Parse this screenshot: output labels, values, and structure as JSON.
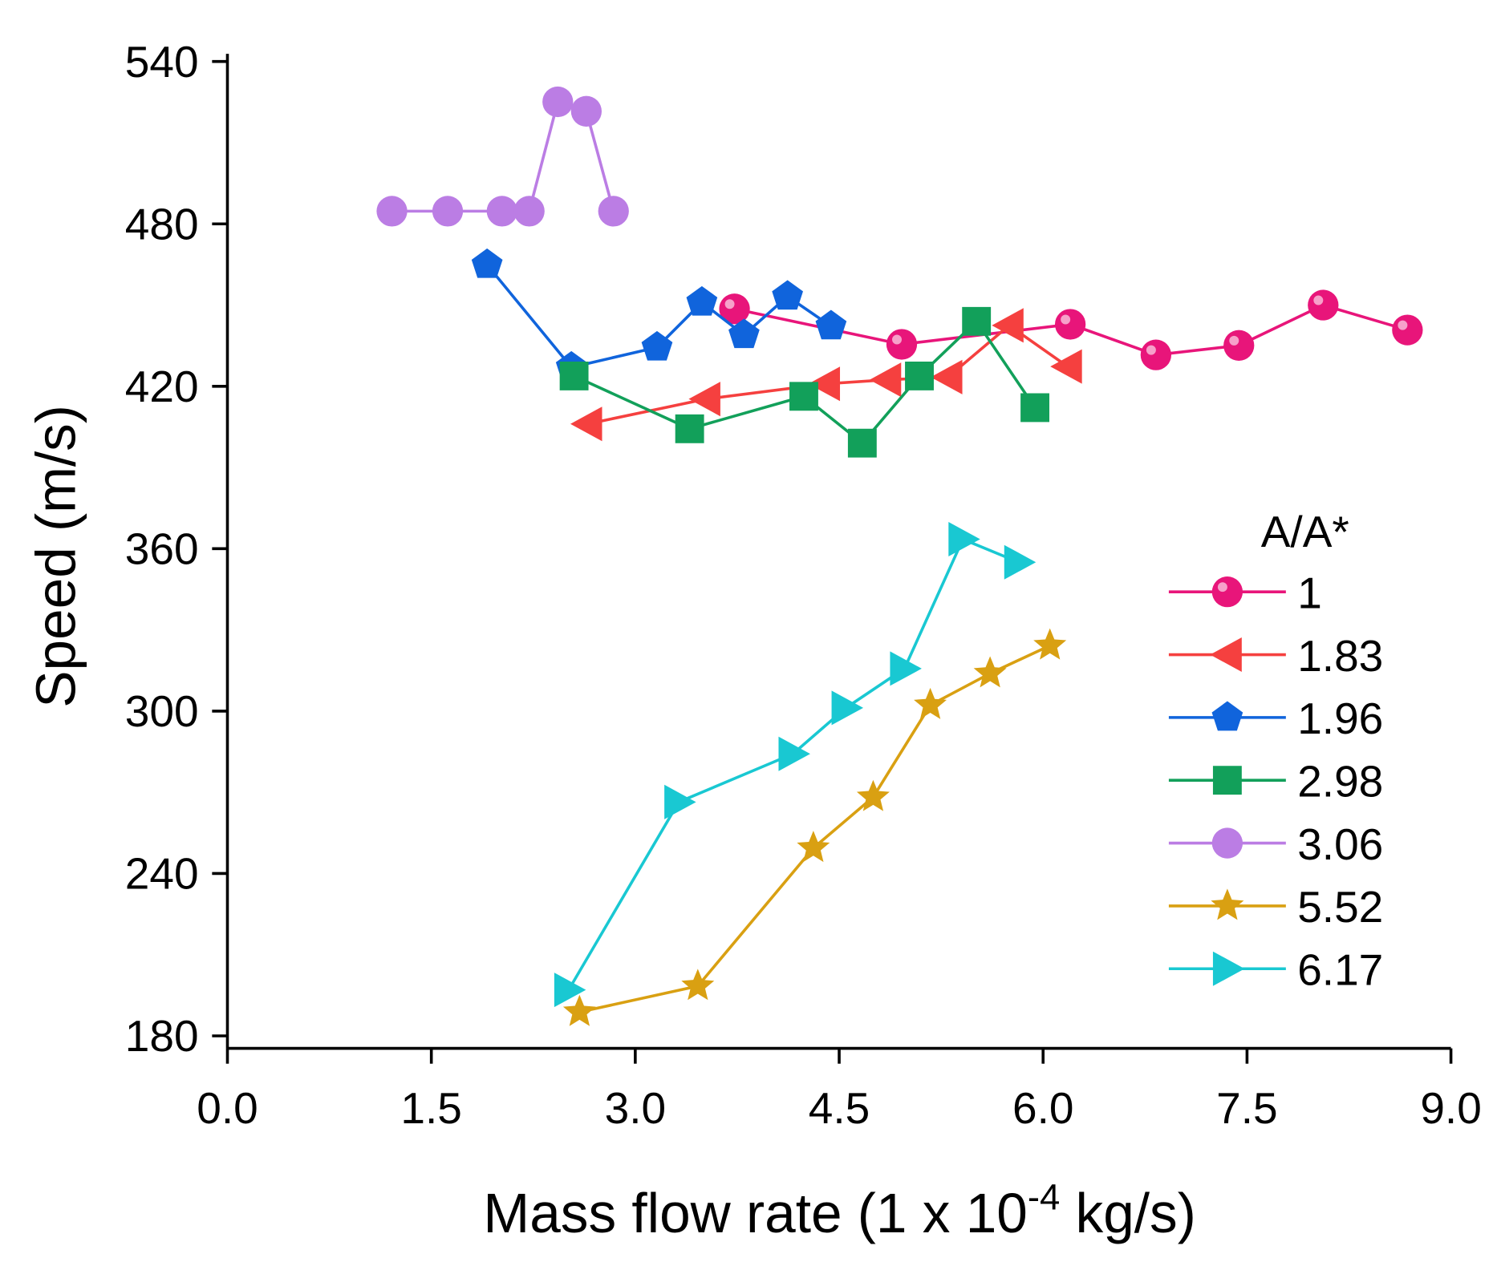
{
  "chart_data": {
    "type": "line",
    "xlabel": "Mass flow rate (1 x 10",
    "xlabel_sup": "-4",
    "xlabel_tail": " kg/s)",
    "ylabel": "Speed (m/s)",
    "xlim": [
      0,
      9
    ],
    "ylim": [
      180,
      540
    ],
    "xticks": [
      "0.0",
      "1.5",
      "3.0",
      "4.5",
      "6.0",
      "7.5",
      "9.0"
    ],
    "yticks": [
      "180",
      "240",
      "300",
      "360",
      "420",
      "480",
      "540"
    ],
    "grid": false,
    "legend": {
      "title": "A/A*",
      "position": "right"
    },
    "series": [
      {
        "name": "1",
        "color": "#e8157a",
        "marker": "sphere",
        "x": [
          3.73,
          4.96,
          6.2,
          6.83,
          7.44,
          8.06,
          8.68
        ],
        "y": [
          448.6,
          435.5,
          442.9,
          431.6,
          435.1,
          450.0,
          440.8
        ]
      },
      {
        "name": "1.83",
        "color": "#f5403f",
        "marker": "triangle-left",
        "x": [
          2.65,
          3.52,
          4.4,
          4.85,
          5.3,
          5.75,
          6.18
        ],
        "y": [
          406.1,
          415.3,
          420.9,
          422.4,
          423.4,
          442.5,
          427.3
        ]
      },
      {
        "name": "1.96",
        "color": "#1064dc",
        "marker": "pentagon",
        "x": [
          1.91,
          2.53,
          3.16,
          3.49,
          3.8,
          4.12,
          4.44
        ],
        "y": [
          464.9,
          427.0,
          434.4,
          451.0,
          439.0,
          453.2,
          442.2
        ]
      },
      {
        "name": "2.98",
        "color": "#12a05a",
        "marker": "square",
        "x": [
          2.55,
          3.4,
          4.24,
          4.67,
          5.09,
          5.51,
          5.94
        ],
        "y": [
          423.8,
          404.3,
          416.3,
          399.0,
          423.8,
          444.0,
          412.1
        ]
      },
      {
        "name": "3.06",
        "color": "#bb7de4",
        "marker": "circle",
        "x": [
          1.21,
          1.62,
          2.02,
          2.22,
          2.43,
          2.64,
          2.84
        ],
        "y": [
          484.7,
          484.7,
          484.7,
          484.7,
          525.1,
          521.6,
          484.7
        ]
      },
      {
        "name": "5.52",
        "color": "#d9a012",
        "marker": "star",
        "x": [
          2.59,
          3.46,
          4.31,
          4.75,
          5.17,
          5.61,
          6.05
        ],
        "y": [
          188.8,
          198.4,
          249.4,
          268.2,
          302.2,
          313.9,
          324.2
        ]
      },
      {
        "name": "6.17",
        "color": "#19c8d2",
        "marker": "triangle-right",
        "x": [
          2.51,
          3.32,
          4.16,
          4.55,
          4.98,
          5.41,
          5.82
        ],
        "y": [
          197.0,
          266.4,
          284.2,
          301.2,
          315.7,
          363.5,
          355.0
        ]
      }
    ]
  }
}
